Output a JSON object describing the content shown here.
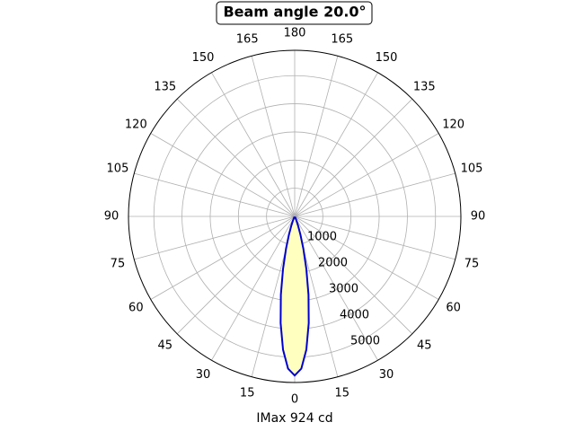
{
  "chart_data": {
    "type": "polar",
    "title": "Beam angle 20.0°",
    "xlabel": "IMax 924 cd",
    "theta": [
      -30,
      -27.5,
      -25,
      -22.5,
      -20,
      -17.5,
      -15,
      -12.5,
      -10,
      -7.5,
      -5,
      -2.5,
      0,
      2.5,
      5,
      7.5,
      10,
      12.5,
      15,
      17.5,
      20,
      22.5,
      25,
      27.5,
      30
    ],
    "values": [
      11,
      30,
      74,
      169,
      353,
      676,
      1188,
      1910,
      2825,
      3824,
      4751,
      5411,
      5650,
      5411,
      4751,
      3824,
      2825,
      1910,
      1188,
      676,
      353,
      169,
      74,
      30,
      11
    ],
    "color": "#0000cc",
    "fill_color": "#ffffc0",
    "rlim": [
      0,
      5900
    ],
    "rticks": [
      1000,
      2000,
      3000,
      4000,
      5000
    ],
    "thetaticks": [
      0,
      15,
      30,
      45,
      60,
      75,
      90,
      105,
      120,
      135,
      150,
      165,
      180,
      {
        "value": 195,
        "label": "165"
      },
      {
        "value": 210,
        "label": "150"
      },
      {
        "value": 225,
        "label": "135"
      },
      {
        "value": 240,
        "label": "120"
      },
      {
        "value": 255,
        "label": "105"
      },
      {
        "value": 270,
        "label": "90"
      },
      {
        "value": 285,
        "label": "75"
      },
      {
        "value": 300,
        "label": "60"
      },
      {
        "value": 315,
        "label": "45"
      },
      {
        "value": 330,
        "label": "30"
      },
      {
        "value": 345,
        "label": "15"
      }
    ],
    "grid": true
  }
}
